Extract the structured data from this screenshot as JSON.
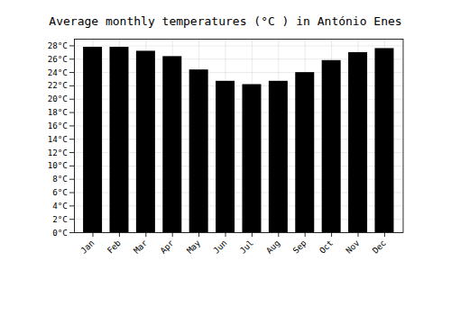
{
  "chart_data": {
    "type": "bar",
    "title": "Average monthly temperatures (°C ) in António Enes",
    "categories": [
      "Jan",
      "Feb",
      "Mar",
      "Apr",
      "May",
      "Jun",
      "Jul",
      "Aug",
      "Sep",
      "Oct",
      "Nov",
      "Dec"
    ],
    "values": [
      27.8,
      27.8,
      27.2,
      26.4,
      24.4,
      22.7,
      22.2,
      22.7,
      24.0,
      25.8,
      27.0,
      27.6
    ],
    "ylim": [
      0,
      29
    ],
    "yticks": [
      {
        "value": 0,
        "label": "0°C"
      },
      {
        "value": 2,
        "label": "2°C"
      },
      {
        "value": 4,
        "label": "4°C"
      },
      {
        "value": 6,
        "label": "6°C"
      },
      {
        "value": 8,
        "label": "8°C"
      },
      {
        "value": 10,
        "label": "10°C"
      },
      {
        "value": 12,
        "label": "12°C"
      },
      {
        "value": 14,
        "label": "14°C"
      },
      {
        "value": 16,
        "label": "16°C"
      },
      {
        "value": 18,
        "label": "18°C"
      },
      {
        "value": 20,
        "label": "20°C"
      },
      {
        "value": 22,
        "label": "22°C"
      },
      {
        "value": 24,
        "label": "24°C"
      },
      {
        "value": 26,
        "label": "26°C"
      },
      {
        "value": 28,
        "label": "28°C"
      }
    ],
    "grid": true
  }
}
